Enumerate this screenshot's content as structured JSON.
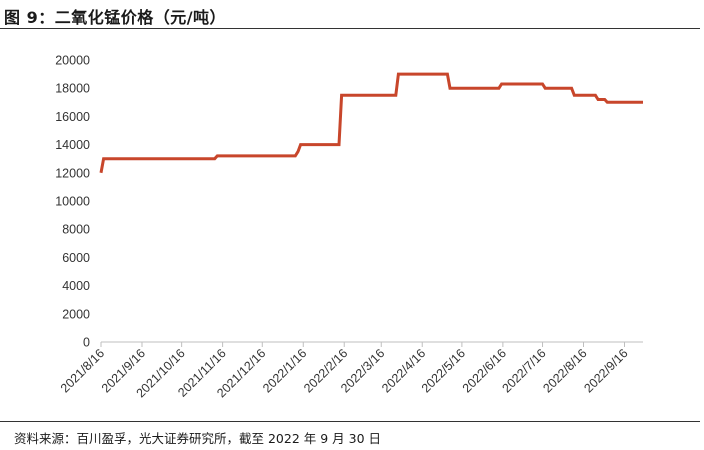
{
  "title": "图 9：二氧化锰价格（元/吨）",
  "source": "资料来源：百川盈孚，光大证券研究所，截至 2022 年 9 月 30 日",
  "colors": {
    "line": "#c8462b",
    "axis": "#bfbfbf"
  },
  "chart_data": {
    "type": "line",
    "title": "二氧化锰价格（元/吨）",
    "xlabel": "",
    "ylabel": "",
    "ylim": [
      0,
      20000
    ],
    "yticks": [
      0,
      2000,
      4000,
      6000,
      8000,
      10000,
      12000,
      14000,
      16000,
      18000,
      20000
    ],
    "xticks": [
      "2021/8/16",
      "2021/9/16",
      "2021/10/16",
      "2021/11/16",
      "2021/12/16",
      "2022/1/16",
      "2022/2/16",
      "2022/3/16",
      "2022/4/16",
      "2022/5/16",
      "2022/6/16",
      "2022/7/16",
      "2022/8/16",
      "2022/9/16"
    ],
    "xlim": [
      "2021/8/16",
      "2022/9/30"
    ],
    "grid": false,
    "legend": "none",
    "series": [
      {
        "points": [
          [
            "2021/8/16",
            12000
          ],
          [
            "2021/8/18",
            13000
          ],
          [
            "2021/11/10",
            13000
          ],
          [
            "2021/11/12",
            13200
          ],
          [
            "2022/1/10",
            13200
          ],
          [
            "2022/1/12",
            13500
          ],
          [
            "2022/1/14",
            14000
          ],
          [
            "2022/2/12",
            14000
          ],
          [
            "2022/2/14",
            17500
          ],
          [
            "2022/3/27",
            17500
          ],
          [
            "2022/3/29",
            19000
          ],
          [
            "2022/5/5",
            19000
          ],
          [
            "2022/5/7",
            18000
          ],
          [
            "2022/6/13",
            18000
          ],
          [
            "2022/6/15",
            18300
          ],
          [
            "2022/7/16",
            18300
          ],
          [
            "2022/7/18",
            18000
          ],
          [
            "2022/8/7",
            18000
          ],
          [
            "2022/8/9",
            17500
          ],
          [
            "2022/8/25",
            17500
          ],
          [
            "2022/8/27",
            17200
          ],
          [
            "2022/9/1",
            17200
          ],
          [
            "2022/9/3",
            17000
          ],
          [
            "2022/9/30",
            17000
          ]
        ]
      }
    ]
  }
}
